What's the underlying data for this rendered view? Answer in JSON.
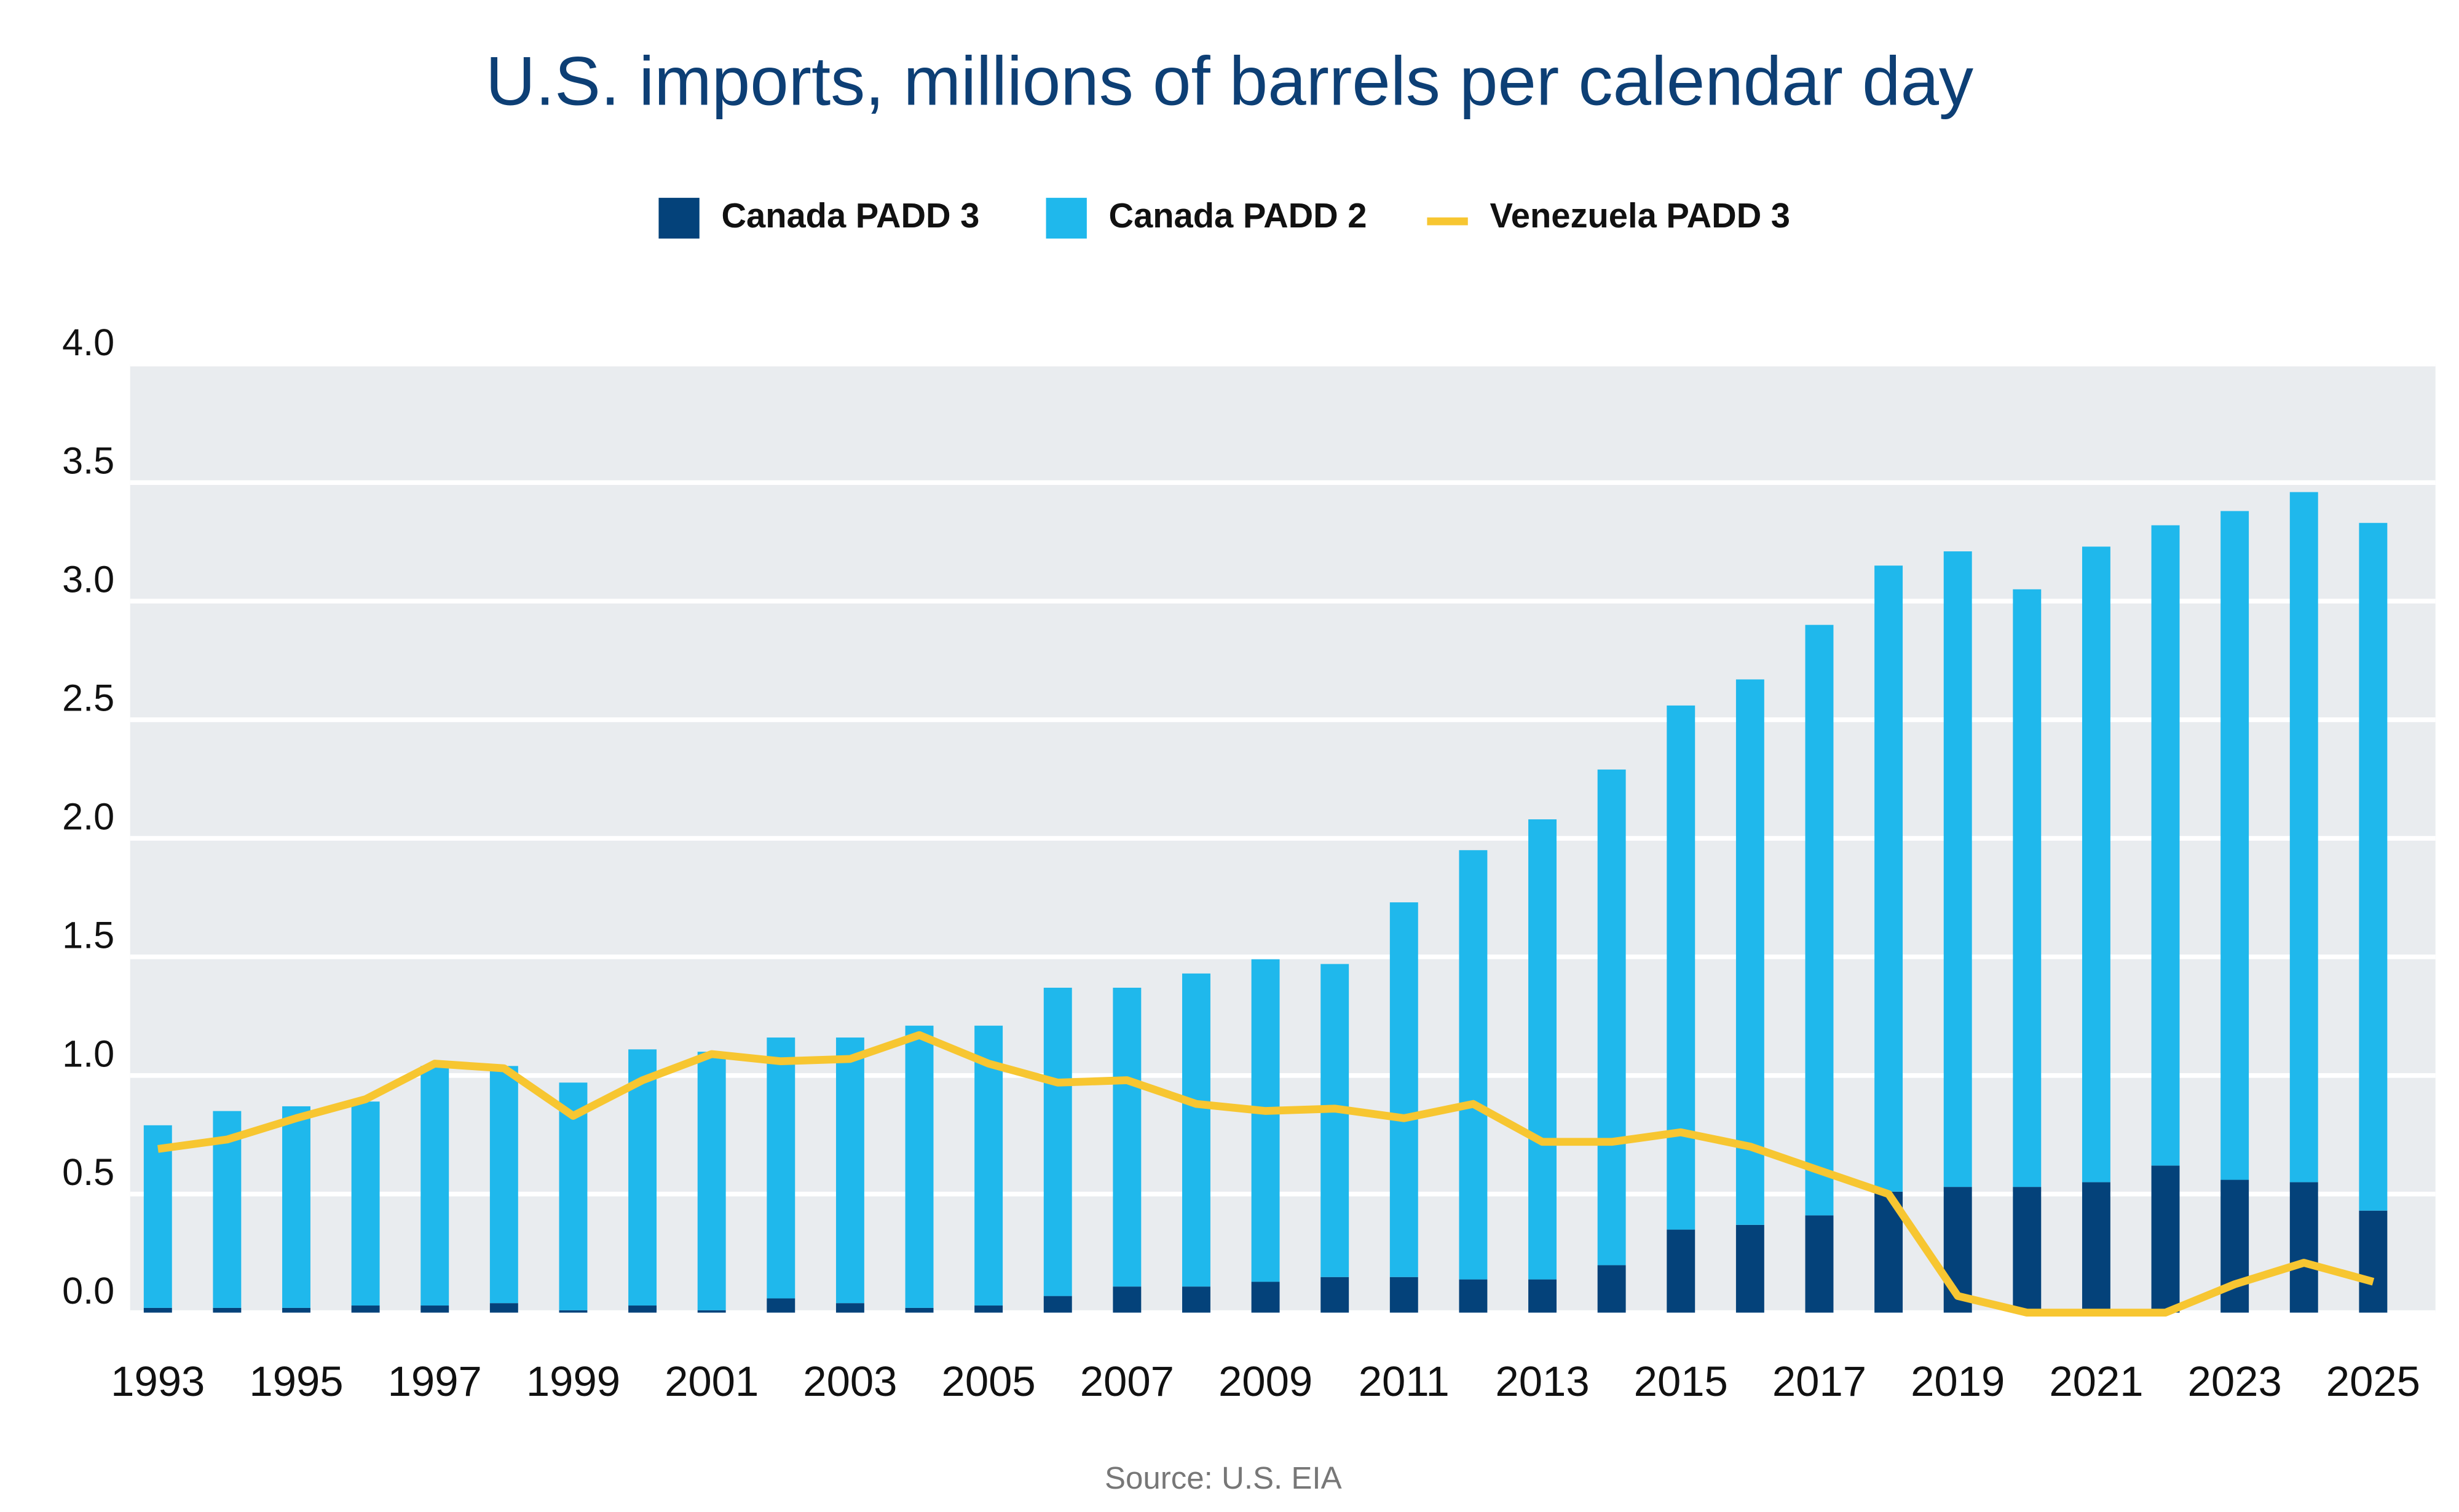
{
  "chart_data": {
    "type": "bar",
    "title": "U.S. imports, millions of barrels per calendar day",
    "source": "Source: U.S. EIA",
    "x": [
      1993,
      1994,
      1995,
      1996,
      1997,
      1998,
      1999,
      2000,
      2001,
      2002,
      2003,
      2004,
      2005,
      2006,
      2007,
      2008,
      2009,
      2010,
      2011,
      2012,
      2013,
      2014,
      2015,
      2016,
      2017,
      2018,
      2019,
      2020,
      2021,
      2022,
      2023,
      2024,
      2025
    ],
    "xlim": [
      1992.6,
      2025.9
    ],
    "xticks": [
      1993,
      1995,
      1997,
      1999,
      2001,
      2003,
      2005,
      2007,
      2009,
      2011,
      2013,
      2015,
      2017,
      2019,
      2021,
      2023,
      2025
    ],
    "ylim": [
      0,
      4
    ],
    "yticks": [
      {
        "value": 0,
        "label": "0.0"
      },
      {
        "value": 0.5,
        "label": "0.5"
      },
      {
        "value": 1,
        "label": "1.0"
      },
      1.5,
      {
        "value": 2,
        "label": "2.0"
      },
      2.5,
      {
        "value": 3,
        "label": "3.0"
      },
      3.5,
      {
        "value": 4,
        "label": "4.0"
      }
    ],
    "grid": true,
    "stacked": true,
    "series": [
      {
        "name": "Canada PADD 3",
        "color": "#04427a",
        "values": [
          0.02,
          0.02,
          0.02,
          0.03,
          0.03,
          0.04,
          0.01,
          0.03,
          0.01,
          0.06,
          0.04,
          0.02,
          0.03,
          0.07,
          0.11,
          0.11,
          0.13,
          0.15,
          0.15,
          0.14,
          0.14,
          0.2,
          0.35,
          0.37,
          0.41,
          0.51,
          0.53,
          0.53,
          0.55,
          0.62,
          0.56,
          0.55,
          0.43
        ]
      },
      {
        "name": "Canada PADD 2",
        "color": "#1fb8ec",
        "values": [
          0.77,
          0.83,
          0.85,
          0.86,
          1.01,
          1.0,
          0.96,
          1.08,
          1.09,
          1.1,
          1.12,
          1.19,
          1.18,
          1.3,
          1.26,
          1.32,
          1.36,
          1.32,
          1.58,
          1.81,
          1.94,
          2.09,
          2.21,
          2.3,
          2.49,
          2.64,
          2.68,
          2.52,
          2.68,
          2.7,
          2.82,
          2.91,
          2.9
        ]
      },
      {
        "name": "Venezuela PADD 3",
        "type": "line",
        "color": "#f7c631",
        "values": [
          0.69,
          0.73,
          0.82,
          0.9,
          1.05,
          1.03,
          0.83,
          0.98,
          1.09,
          1.06,
          1.07,
          1.17,
          1.05,
          0.97,
          0.98,
          0.88,
          0.85,
          0.86,
          0.82,
          0.88,
          0.72,
          0.72,
          0.76,
          0.7,
          0.6,
          0.5,
          0.07,
          0.0,
          0.0,
          0.0,
          0.12,
          0.21,
          0.13
        ]
      }
    ]
  }
}
